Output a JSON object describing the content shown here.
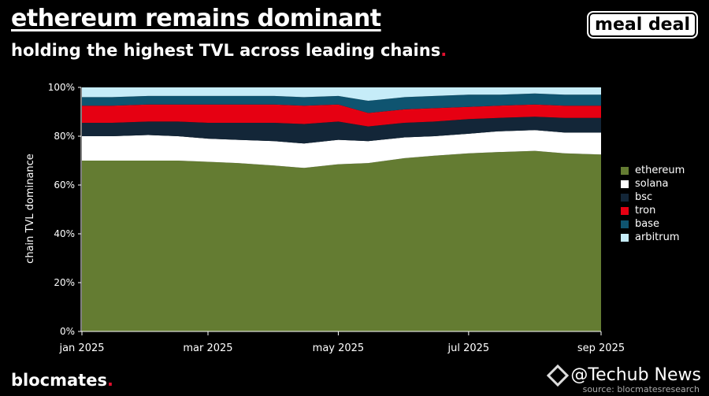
{
  "header": {
    "title": "ethereum remains dominant",
    "subtitle": "holding the highest TVL across leading chains",
    "subtitle_dot": "."
  },
  "badge": {
    "label": "meal deal"
  },
  "footer": {
    "brand": "blocmates",
    "brand_dot": ".",
    "watermark": "@Techub News",
    "source": "source: blocmatesresearch"
  },
  "chart_data": {
    "type": "area",
    "stacked": true,
    "normalized": true,
    "ylabel": "chain TVL dominance",
    "xlabel": "",
    "x_ticks": [
      "jan 2025",
      "mar 2025",
      "may 2025",
      "jul 2025",
      "sep 2025"
    ],
    "y_ticks": [
      "0%",
      "20%",
      "40%",
      "60%",
      "80%",
      "100%"
    ],
    "ylim": [
      0,
      100
    ],
    "x": [
      "2025-01-01",
      "2025-01-15",
      "2025-02-01",
      "2025-02-15",
      "2025-03-01",
      "2025-03-15",
      "2025-04-01",
      "2025-04-15",
      "2025-05-01",
      "2025-05-15",
      "2025-06-01",
      "2025-06-15",
      "2025-07-01",
      "2025-07-15",
      "2025-08-01",
      "2025-08-15",
      "2025-09-01"
    ],
    "series": [
      {
        "name": "ethereum",
        "color": "#647c32",
        "values": [
          70,
          70,
          70,
          70,
          69.5,
          69,
          68,
          67,
          68.5,
          69,
          71,
          72,
          73,
          73.5,
          74,
          73,
          72.5
        ]
      },
      {
        "name": "solana",
        "color": "#ffffff",
        "values": [
          10,
          10,
          10.5,
          10,
          9.5,
          9.5,
          10,
          10,
          10,
          9,
          8.5,
          8,
          8,
          8.5,
          8.5,
          8.5,
          9
        ]
      },
      {
        "name": "bsc",
        "color": "#132638",
        "values": [
          5.5,
          5.5,
          5.5,
          6,
          6.5,
          7,
          7.5,
          8,
          7.5,
          6,
          6,
          6,
          6,
          5.5,
          5.5,
          6,
          6
        ]
      },
      {
        "name": "tron",
        "color": "#e60012",
        "values": [
          7,
          7,
          7,
          7,
          7.5,
          7.5,
          7.5,
          7.5,
          7,
          5.5,
          5.5,
          5.5,
          5,
          5,
          5,
          5,
          5
        ]
      },
      {
        "name": "base",
        "color": "#0f5470",
        "values": [
          3.5,
          3.5,
          3.5,
          3.5,
          3.5,
          3.5,
          3.5,
          3.5,
          3.5,
          5,
          5,
          5,
          5,
          4.5,
          4.5,
          4.5,
          4.5
        ]
      },
      {
        "name": "arbitrum",
        "color": "#c6ecf8",
        "values": [
          4,
          4,
          3.5,
          3.5,
          3.5,
          3.5,
          3.5,
          4,
          3.5,
          5.5,
          4,
          3.5,
          3,
          3,
          2.5,
          3,
          3
        ]
      }
    ],
    "legend_position": "right",
    "grid": false
  }
}
